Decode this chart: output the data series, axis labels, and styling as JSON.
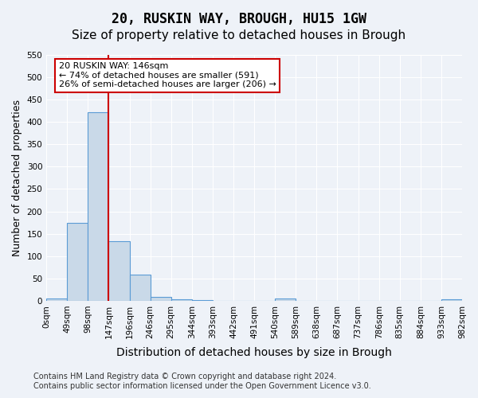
{
  "title_line1": "20, RUSKIN WAY, BROUGH, HU15 1GW",
  "title_line2": "Size of property relative to detached houses in Brough",
  "xlabel": "Distribution of detached houses by size in Brough",
  "ylabel": "Number of detached properties",
  "bin_labels": [
    "0sqm",
    "49sqm",
    "98sqm",
    "147sqm",
    "196sqm",
    "246sqm",
    "295sqm",
    "344sqm",
    "393sqm",
    "442sqm",
    "491sqm",
    "540sqm",
    "589sqm",
    "638sqm",
    "687sqm",
    "737sqm",
    "786sqm",
    "835sqm",
    "884sqm",
    "933sqm",
    "982sqm"
  ],
  "bar_values": [
    5,
    175,
    422,
    133,
    58,
    8,
    4,
    2,
    0,
    0,
    0,
    5,
    0,
    0,
    0,
    0,
    0,
    0,
    0,
    3
  ],
  "bar_color": "#c9d9e8",
  "bar_edge_color": "#5b9bd5",
  "vline_x_data": 2.5,
  "vline_color": "#cc0000",
  "annotation_text": "20 RUSKIN WAY: 146sqm\n← 74% of detached houses are smaller (591)\n26% of semi-detached houses are larger (206) →",
  "annotation_box_color": "#ffffff",
  "annotation_edge_color": "#cc0000",
  "ylim": [
    0,
    550
  ],
  "yticks": [
    0,
    50,
    100,
    150,
    200,
    250,
    300,
    350,
    400,
    450,
    500,
    550
  ],
  "background_color": "#eef2f8",
  "grid_color": "#ffffff",
  "footer_text": "Contains HM Land Registry data © Crown copyright and database right 2024.\nContains public sector information licensed under the Open Government Licence v3.0.",
  "title_fontsize": 12,
  "subtitle_fontsize": 11,
  "ylabel_fontsize": 9,
  "xlabel_fontsize": 10,
  "tick_fontsize": 7.5,
  "annotation_fontsize": 8,
  "footer_fontsize": 7
}
